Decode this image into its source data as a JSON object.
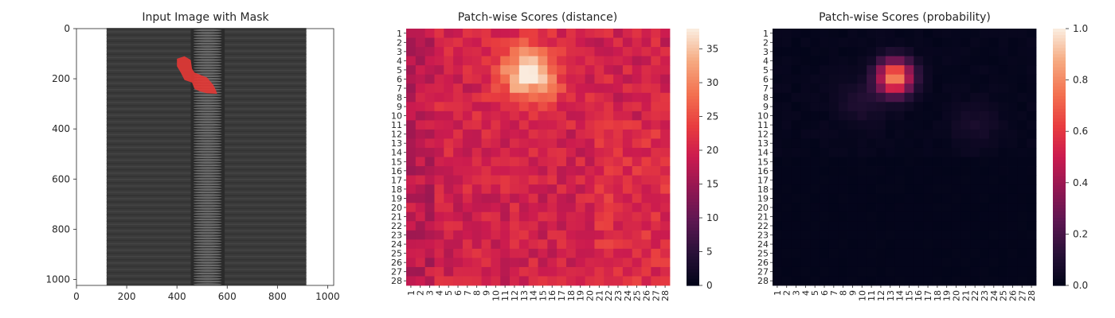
{
  "chart_data": [
    {
      "type": "image",
      "title": "Input Image with Mask",
      "xlim": [
        0,
        1024
      ],
      "ylim": [
        1024,
        0
      ],
      "xticks": [
        0,
        200,
        400,
        600,
        800,
        1000
      ],
      "yticks": [
        0,
        200,
        400,
        600,
        800,
        1000
      ],
      "image_description": "dark zipper tape with center zipper teeth",
      "mask_color": "#e53935",
      "mask_points": [
        [
          400,
          120
        ],
        [
          430,
          110
        ],
        [
          455,
          125
        ],
        [
          460,
          160
        ],
        [
          470,
          175
        ],
        [
          520,
          195
        ],
        [
          545,
          225
        ],
        [
          555,
          245
        ],
        [
          560,
          260
        ],
        [
          520,
          258
        ],
        [
          490,
          250
        ],
        [
          470,
          240
        ],
        [
          460,
          215
        ],
        [
          430,
          205
        ],
        [
          415,
          175
        ],
        [
          400,
          150
        ]
      ]
    },
    {
      "type": "heatmap",
      "title": "Patch-wise Scores (distance)",
      "rows": 28,
      "cols": 28,
      "labels": [
        "1",
        "2",
        "3",
        "4",
        "5",
        "6",
        "7",
        "8",
        "9",
        "10",
        "11",
        "12",
        "13",
        "14",
        "15",
        "16",
        "17",
        "18",
        "19",
        "20",
        "21",
        "22",
        "23",
        "24",
        "25",
        "26",
        "27",
        "28"
      ],
      "colormap": "rocket",
      "vmin": 0,
      "vmax": 38,
      "colorbar_ticks": [
        0,
        5,
        10,
        15,
        20,
        25,
        30,
        35
      ],
      "base_value": 20,
      "hotspot": {
        "row": 5.5,
        "col": 13.5,
        "peak": 37,
        "sigma": 2.2
      },
      "noise_amplitude": 3
    },
    {
      "type": "heatmap",
      "title": "Patch-wise Scores (probability)",
      "rows": 28,
      "cols": 28,
      "labels": [
        "1",
        "2",
        "3",
        "4",
        "5",
        "6",
        "7",
        "8",
        "9",
        "10",
        "11",
        "12",
        "13",
        "14",
        "15",
        "16",
        "17",
        "18",
        "19",
        "20",
        "21",
        "22",
        "23",
        "24",
        "25",
        "26",
        "27",
        "28"
      ],
      "colormap": "rocket",
      "vmin": 0.0,
      "vmax": 1.0,
      "colorbar_ticks": [
        "0.0",
        "0.2",
        "0.4",
        "0.6",
        "0.8",
        "1.0"
      ],
      "base_value": 0.02,
      "hotspot": {
        "row": 5.8,
        "col": 13.5,
        "peak": 0.82,
        "sigma": 1.3
      },
      "secondary_spots": [
        {
          "row": 8.5,
          "col": 10,
          "value": 0.08
        },
        {
          "row": 11,
          "col": 22,
          "value": 0.06
        }
      ]
    }
  ]
}
